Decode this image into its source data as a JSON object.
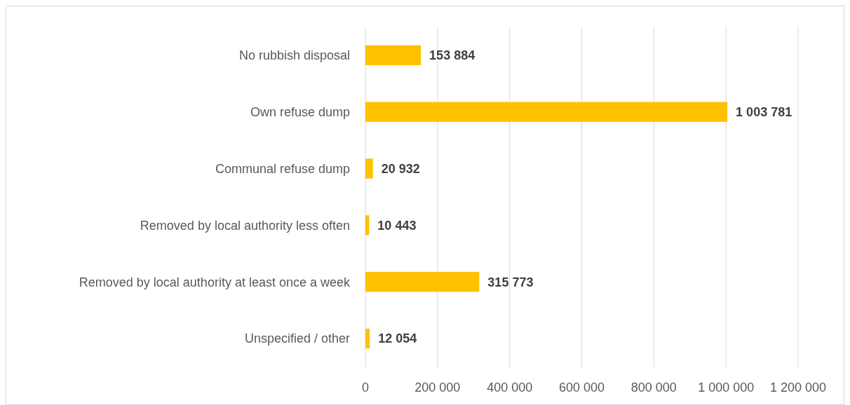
{
  "chart_data": {
    "type": "bar",
    "orientation": "horizontal",
    "categories": [
      "No rubbish disposal",
      "Own refuse dump",
      "Communal refuse dump",
      "Removed by local authority less often",
      "Removed by local authority at least once a week",
      "Unspecified / other"
    ],
    "values": [
      153884,
      1003781,
      20932,
      10443,
      315773,
      12054
    ],
    "value_labels": [
      "153 884",
      "1 003 781",
      "20 932",
      "10 443",
      "315 773",
      "12 054"
    ],
    "color": "#ffc000",
    "xlim": [
      0,
      1200000
    ],
    "xticks": [
      0,
      {
        "value": 200000,
        "label": "200 000"
      },
      {
        "value": 400000,
        "label": "400 000"
      },
      {
        "value": 600000,
        "label": "600 000"
      },
      {
        "value": 800000,
        "label": "800 000"
      },
      {
        "value": 1000000,
        "label": "1 000 000"
      },
      {
        "value": 1200000,
        "label": "1 200 000"
      }
    ],
    "grid": "x"
  }
}
